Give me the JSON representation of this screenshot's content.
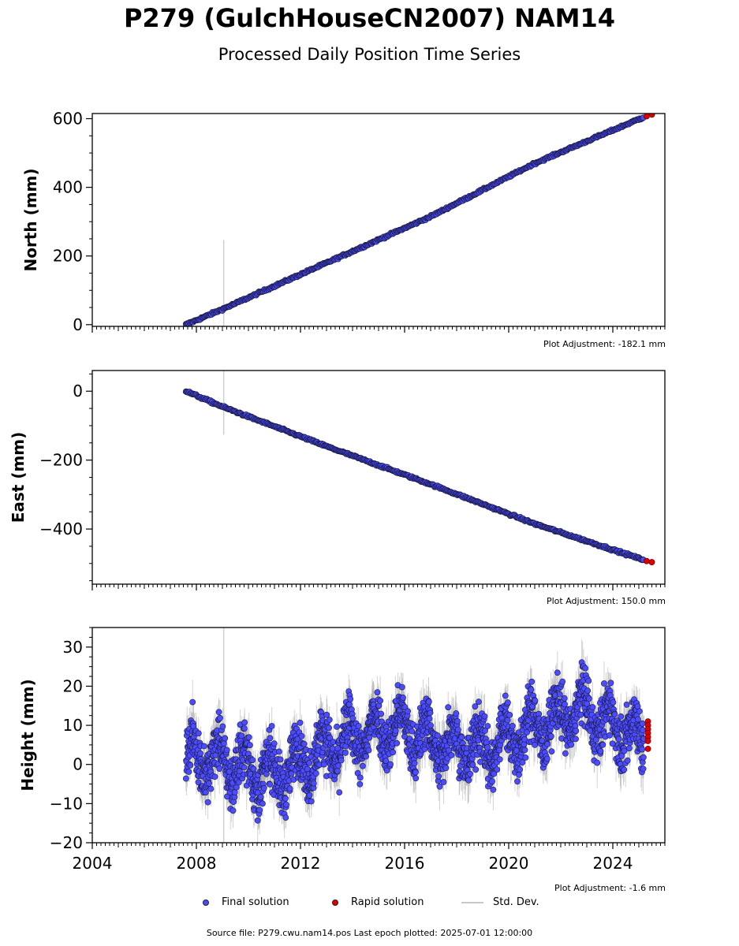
{
  "title": "P279 (GulchHouseCN2007) NAM14",
  "subtitle": "Processed Daily Position Time Series",
  "legend": {
    "final": "Final solution",
    "rapid": "Rapid solution",
    "std": "Std. Dev."
  },
  "footer": "Source file: P279.cwu.nam14.pos  Last epoch plotted: 2025-07-01 12:00:00",
  "colors": {
    "final": "#4b4bff",
    "rapid": "#e00000",
    "std": "#9e9e9e"
  },
  "chart_data": [
    {
      "type": "scatter",
      "panel": "north",
      "ylabel": "North (mm)",
      "adjustment": "Plot Adjustment: -182.1 mm",
      "xlim": [
        2004,
        2026
      ],
      "ylim": [
        -5,
        615
      ],
      "yticks": [
        0,
        200,
        400,
        600
      ],
      "ytick_labels": [
        "0",
        "200",
        "400",
        "600"
      ],
      "xticks": [
        2004,
        2008,
        2012,
        2016,
        2020,
        2024
      ],
      "show_xtick_labels": false,
      "series": [
        {
          "name": "Final solution",
          "x": [
            2007.6,
            2009.0,
            2013.0,
            2017.0,
            2021.0,
            2025.2
          ],
          "y": [
            0,
            45,
            180,
            315,
            470,
            605
          ]
        },
        {
          "name": "Rapid solution",
          "x": [
            2025.3,
            2025.5
          ],
          "y": [
            607,
            612
          ]
        }
      ]
    },
    {
      "type": "scatter",
      "panel": "east",
      "ylabel": "East (mm)",
      "adjustment": "Plot Adjustment: 150.0 mm",
      "xlim": [
        2004,
        2026
      ],
      "ylim": [
        -560,
        60
      ],
      "yticks": [
        0,
        -200,
        -400
      ],
      "ytick_labels": [
        "0",
        "−200",
        "−400"
      ],
      "xticks": [
        2004,
        2008,
        2012,
        2016,
        2020,
        2024
      ],
      "show_xtick_labels": false,
      "series": [
        {
          "name": "Final solution",
          "x": [
            2007.6,
            2009.0,
            2013.0,
            2017.0,
            2021.0,
            2025.2
          ],
          "y": [
            0,
            -45,
            -160,
            -270,
            -385,
            -490
          ]
        },
        {
          "name": "Rapid solution",
          "x": [
            2025.3,
            2025.5
          ],
          "y": [
            -493,
            -496
          ]
        }
      ]
    },
    {
      "type": "scatter",
      "panel": "height",
      "ylabel": "Height (mm)",
      "adjustment": "Plot Adjustment: -1.6 mm",
      "xlim": [
        2004,
        2026
      ],
      "ylim": [
        -20,
        35
      ],
      "yticks": [
        30,
        20,
        10,
        0,
        -10,
        -20
      ],
      "ytick_labels": [
        "30",
        "20",
        "10",
        "0",
        "−10",
        "−20"
      ],
      "xticks": [
        2004,
        2008,
        2012,
        2016,
        2020,
        2024
      ],
      "xtick_labels": [
        "2004",
        "2008",
        "2012",
        "2016",
        "2020",
        "2024"
      ],
      "show_xtick_labels": true,
      "series": [
        {
          "name": "Final solution",
          "trend": {
            "x": [
              2007.6,
              2009.0,
              2011.0,
              2013.0,
              2015.5,
              2017.0,
              2019.0,
              2021.0,
              2022.7,
              2025.2
            ],
            "y": [
              2,
              1,
              -3,
              4,
              10,
              6,
              4,
              9,
              14,
              6
            ]
          },
          "spread": 5
        },
        {
          "name": "Rapid solution",
          "x": [
            2025.35,
            2025.35,
            2025.35,
            2025.35,
            2025.35,
            2025.35,
            2025.35
          ],
          "y": [
            11,
            10,
            9,
            8,
            7,
            6,
            4
          ]
        }
      ]
    }
  ]
}
